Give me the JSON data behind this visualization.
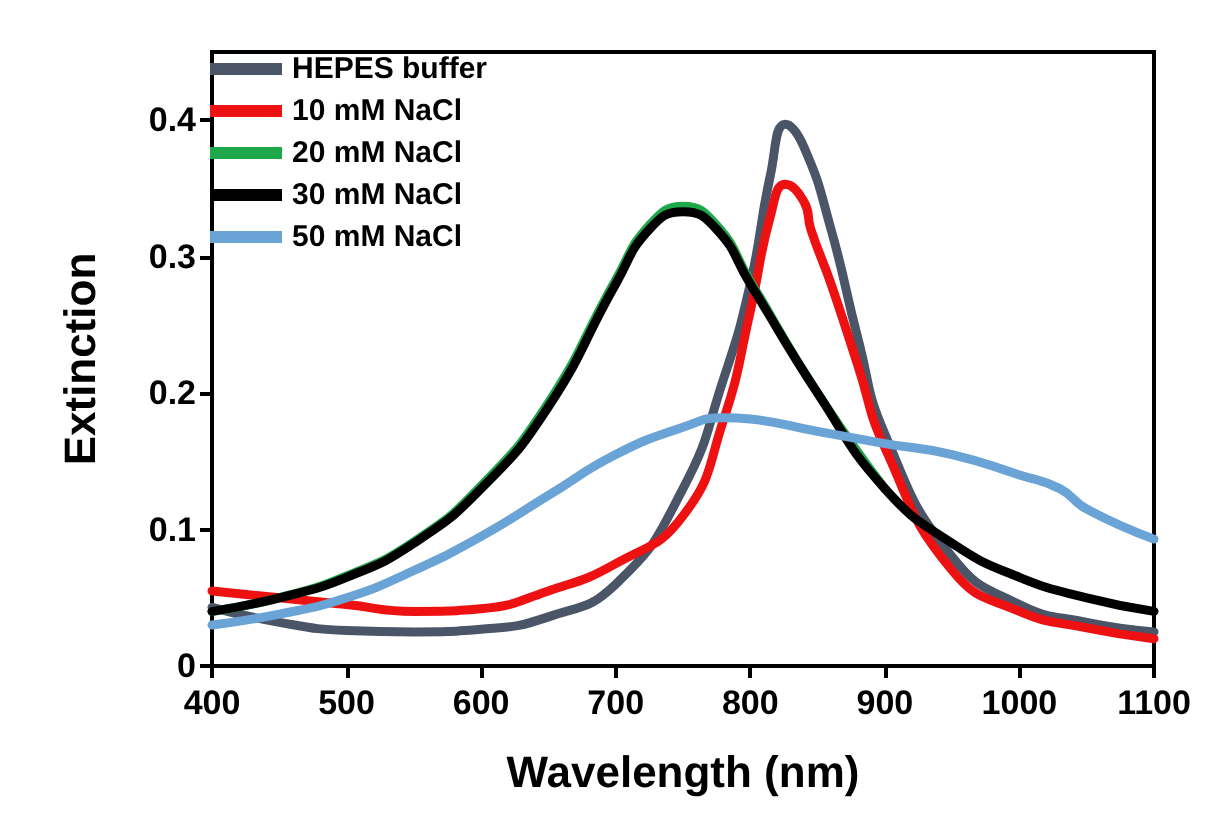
{
  "chart_data": {
    "type": "line",
    "xlabel": "Wavelength (nm)",
    "ylabel": "Extinction",
    "xlim": [
      400,
      1100
    ],
    "xticks": [
      400,
      500,
      600,
      700,
      800,
      900,
      1000,
      1100
    ],
    "ylim": [
      0,
      0.45
    ],
    "yticks": [
      0,
      0.1,
      0.2,
      0.3,
      0.4
    ],
    "grid": false,
    "legend": "top left",
    "marker": "none",
    "line_style": "solid",
    "series": [
      {
        "name": "HEPES buffer",
        "color": "#4a5568",
        "x": [
          400,
          450,
          500,
          550,
          600,
          650,
          700,
          750,
          780,
          800,
          815,
          826,
          840,
          860,
          880,
          900,
          950,
          1000,
          1050,
          1100
        ],
        "values": [
          0.043,
          0.032,
          0.026,
          0.025,
          0.027,
          0.036,
          0.06,
          0.13,
          0.21,
          0.28,
          0.36,
          0.397,
          0.38,
          0.32,
          0.24,
          0.17,
          0.08,
          0.045,
          0.032,
          0.025
        ]
      },
      {
        "name": "10 mM NaCl",
        "color": "#ee1111",
        "x": [
          400,
          450,
          500,
          550,
          600,
          650,
          700,
          750,
          780,
          800,
          815,
          826,
          840,
          845,
          860,
          880,
          900,
          950,
          1000,
          1050,
          1100
        ],
        "values": [
          0.055,
          0.05,
          0.045,
          0.04,
          0.042,
          0.055,
          0.075,
          0.11,
          0.18,
          0.26,
          0.33,
          0.353,
          0.34,
          0.32,
          0.28,
          0.22,
          0.16,
          0.07,
          0.04,
          0.028,
          0.02
        ]
      },
      {
        "name": "20 mM NaCl",
        "color": "#1fa84a",
        "x": [
          400,
          450,
          500,
          550,
          600,
          650,
          700,
          725,
          750,
          775,
          800,
          850,
          900
        ],
        "values": [
          0.04,
          0.05,
          0.066,
          0.091,
          0.132,
          0.193,
          0.283,
          0.323,
          0.337,
          0.323,
          0.282,
          0.2,
          0.13
        ]
      },
      {
        "name": "30 mM NaCl",
        "color": "#000000",
        "x": [
          400,
          450,
          500,
          550,
          600,
          650,
          700,
          725,
          750,
          775,
          800,
          850,
          900,
          950,
          1000,
          1050,
          1100
        ],
        "values": [
          0.04,
          0.05,
          0.065,
          0.09,
          0.13,
          0.19,
          0.28,
          0.32,
          0.333,
          0.32,
          0.28,
          0.2,
          0.13,
          0.09,
          0.065,
          0.05,
          0.04
        ]
      },
      {
        "name": "50 mM NaCl",
        "color": "#6aa3d5",
        "x": [
          400,
          450,
          500,
          550,
          600,
          650,
          700,
          750,
          780,
          800,
          850,
          900,
          950,
          1000,
          1030,
          1050,
          1100
        ],
        "values": [
          0.03,
          0.038,
          0.05,
          0.07,
          0.095,
          0.125,
          0.155,
          0.175,
          0.182,
          0.181,
          0.172,
          0.163,
          0.155,
          0.14,
          0.13,
          0.115,
          0.093
        ]
      }
    ]
  }
}
